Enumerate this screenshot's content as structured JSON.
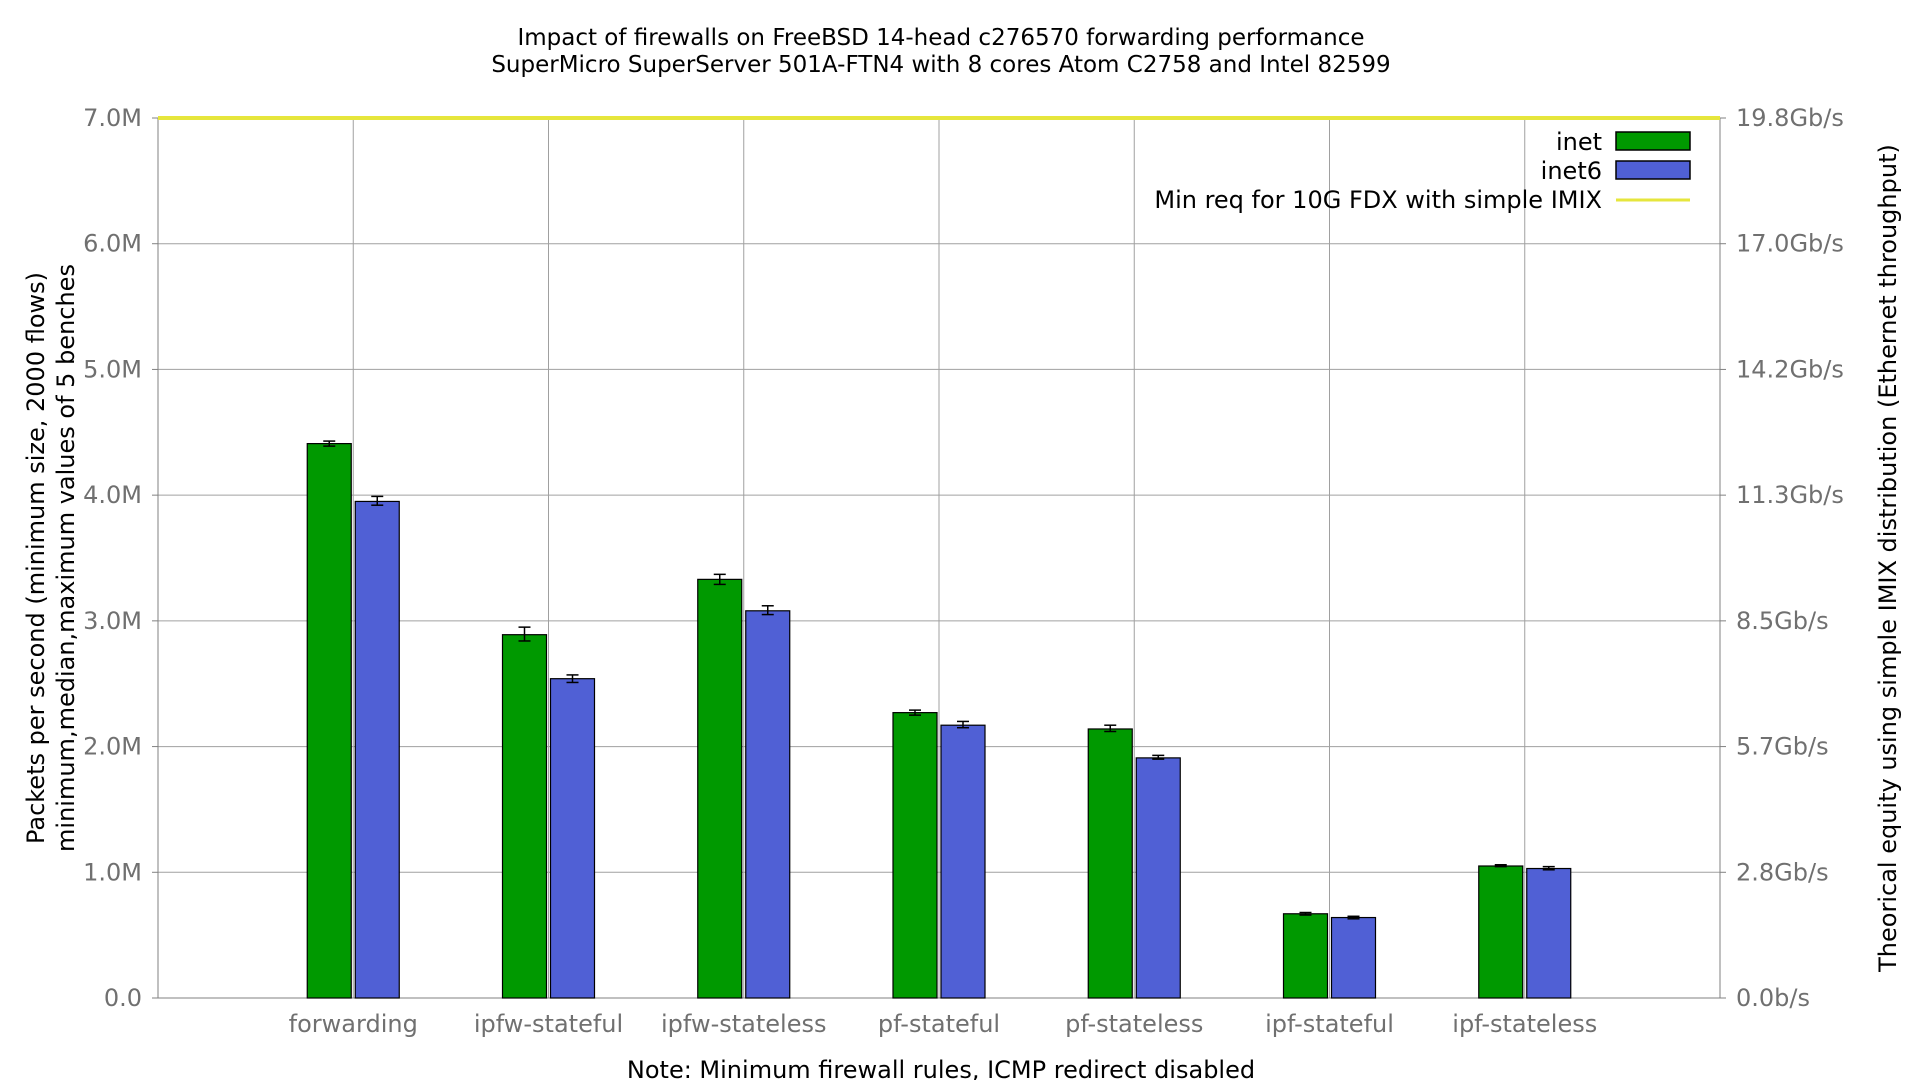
{
  "chart_data": {
    "type": "bar",
    "title": "Impact of firewalls on FreeBSD 14-head c276570 forwarding performance",
    "subtitle": "SuperMicro SuperServer 501A-FTN4 with 8 cores Atom C2758 and Intel 82599",
    "ylabel_line1": "Packets per second (minimum size, 2000 flows)",
    "ylabel_line2": "minimum,median,maximum values of 5 benches",
    "y2label": "Theorical equity using simple IMIX distribution (Ethernet throughput)",
    "xlabel": "Note: Minimum firewall rules, ICMP redirect disabled",
    "ylim": [
      0,
      7000000
    ],
    "y_ticks": [
      {
        "value": 0,
        "label": "0.0"
      },
      {
        "value": 1000000,
        "label": "1.0M"
      },
      {
        "value": 2000000,
        "label": "2.0M"
      },
      {
        "value": 3000000,
        "label": "3.0M"
      },
      {
        "value": 4000000,
        "label": "4.0M"
      },
      {
        "value": 5000000,
        "label": "5.0M"
      },
      {
        "value": 6000000,
        "label": "6.0M"
      },
      {
        "value": 7000000,
        "label": "7.0M"
      }
    ],
    "y2_ticks": [
      {
        "value": 0,
        "label": "0.0b/s"
      },
      {
        "value": 1000000,
        "label": "2.8Gb/s"
      },
      {
        "value": 2000000,
        "label": "5.7Gb/s"
      },
      {
        "value": 3000000,
        "label": "8.5Gb/s"
      },
      {
        "value": 4000000,
        "label": "11.3Gb/s"
      },
      {
        "value": 5000000,
        "label": "14.2Gb/s"
      },
      {
        "value": 6000000,
        "label": "17.0Gb/s"
      },
      {
        "value": 7000000,
        "label": "19.8Gb/s"
      }
    ],
    "categories": [
      "forwarding",
      "ipfw-stateful",
      "ipfw-stateless",
      "pf-stateful",
      "pf-stateless",
      "ipf-stateful",
      "ipf-stateless"
    ],
    "series": [
      {
        "name": "inet",
        "color": "#009900",
        "values": [
          4410000,
          2890000,
          3330000,
          2270000,
          2140000,
          670000,
          1050000
        ],
        "min": [
          4390000,
          2840000,
          3290000,
          2250000,
          2120000,
          660000,
          1045000
        ],
        "max": [
          4430000,
          2950000,
          3370000,
          2290000,
          2170000,
          680000,
          1060000
        ]
      },
      {
        "name": "inet6",
        "color": "#5060d5",
        "values": [
          3950000,
          2540000,
          3080000,
          2170000,
          1910000,
          640000,
          1030000
        ],
        "min": [
          3920000,
          2510000,
          3050000,
          2150000,
          1900000,
          630000,
          1020000
        ],
        "max": [
          3990000,
          2570000,
          3120000,
          2200000,
          1930000,
          650000,
          1045000
        ]
      }
    ],
    "reference_line": {
      "name": "Min req for 10G FDX with simple IMIX",
      "value": 7000000,
      "color": "#e6e63c"
    },
    "grid": true,
    "legend_position": "top-right"
  }
}
